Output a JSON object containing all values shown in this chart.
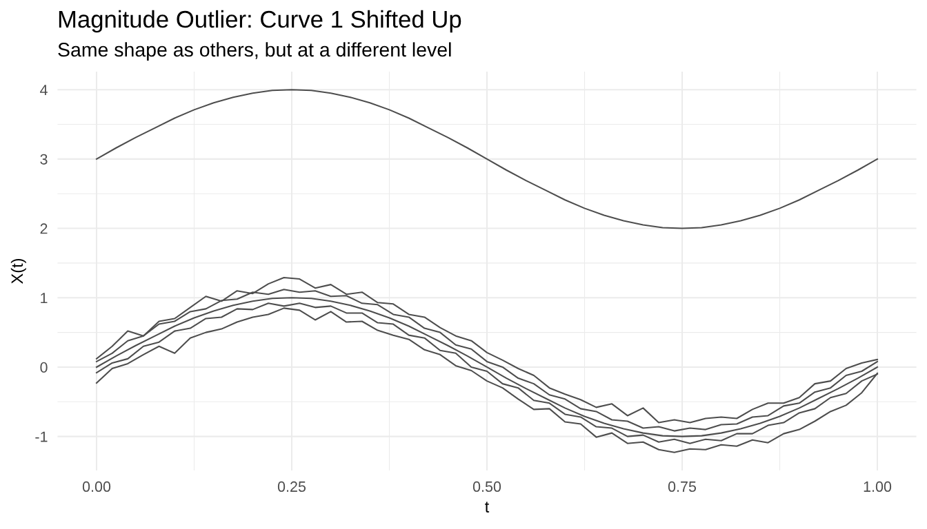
{
  "chart_data": {
    "type": "line",
    "title": "Magnitude Outlier: Curve 1 Shifted Up",
    "subtitle": "Same shape as others, but at a different level",
    "xlabel": "t",
    "ylabel": "X(t)",
    "x": [
      0,
      0.025,
      0.05,
      0.075,
      0.1,
      0.125,
      0.15,
      0.175,
      0.2,
      0.225,
      0.25,
      0.275,
      0.3,
      0.325,
      0.35,
      0.375,
      0.4,
      0.425,
      0.45,
      0.475,
      0.5,
      0.525,
      0.55,
      0.575,
      0.6,
      0.625,
      0.65,
      0.675,
      0.7,
      0.725,
      0.75,
      0.775,
      0.8,
      0.825,
      0.85,
      0.875,
      0.9,
      0.925,
      0.95,
      0.975,
      1.0
    ],
    "series": [
      {
        "color": "#4d4d4d",
        "values": [
          3.0,
          3.16,
          3.31,
          3.45,
          3.59,
          3.71,
          3.81,
          3.89,
          3.95,
          3.99,
          4.0,
          3.99,
          3.95,
          3.89,
          3.81,
          3.71,
          3.59,
          3.45,
          3.31,
          3.16,
          3.0,
          2.84,
          2.69,
          2.55,
          2.41,
          2.29,
          2.19,
          2.11,
          2.05,
          2.01,
          2.0,
          2.01,
          2.05,
          2.11,
          2.19,
          2.29,
          2.41,
          2.55,
          2.69,
          2.84,
          3.0
        ]
      },
      {
        "color": "#4d4d4d",
        "x": [
          0,
          0.02,
          0.04,
          0.06,
          0.08,
          0.1,
          0.12,
          0.14,
          0.16,
          0.18,
          0.2,
          0.22,
          0.24,
          0.26,
          0.28,
          0.3,
          0.32,
          0.34,
          0.36,
          0.38,
          0.4,
          0.42,
          0.44,
          0.46,
          0.48,
          0.5,
          0.52,
          0.54,
          0.56,
          0.58,
          0.6,
          0.62,
          0.64,
          0.66,
          0.68,
          0.7,
          0.72,
          0.74,
          0.76,
          0.78,
          0.8,
          0.82,
          0.84,
          0.86,
          0.88,
          0.9,
          0.92,
          0.94,
          0.96,
          0.98,
          1.0
        ],
        "values": [
          0.12,
          0.3,
          0.52,
          0.45,
          0.66,
          0.7,
          0.86,
          1.02,
          0.95,
          1.1,
          1.06,
          1.2,
          1.29,
          1.27,
          1.14,
          1.19,
          1.05,
          1.08,
          0.93,
          0.91,
          0.76,
          0.72,
          0.57,
          0.45,
          0.38,
          0.21,
          0.1,
          -0.02,
          -0.12,
          -0.3,
          -0.39,
          -0.47,
          -0.58,
          -0.53,
          -0.7,
          -0.59,
          -0.8,
          -0.76,
          -0.8,
          -0.74,
          -0.72,
          -0.74,
          -0.61,
          -0.52,
          -0.52,
          -0.44,
          -0.24,
          -0.2,
          -0.02,
          0.06,
          0.11
        ]
      },
      {
        "color": "#4d4d4d",
        "x": [
          0,
          0.02,
          0.04,
          0.06,
          0.08,
          0.1,
          0.12,
          0.14,
          0.16,
          0.18,
          0.2,
          0.22,
          0.24,
          0.26,
          0.28,
          0.3,
          0.32,
          0.34,
          0.36,
          0.38,
          0.4,
          0.42,
          0.44,
          0.46,
          0.48,
          0.5,
          0.52,
          0.54,
          0.56,
          0.58,
          0.6,
          0.62,
          0.64,
          0.66,
          0.68,
          0.7,
          0.72,
          0.74,
          0.76,
          0.78,
          0.8,
          0.82,
          0.84,
          0.86,
          0.88,
          0.9,
          0.92,
          0.94,
          0.96,
          0.98,
          1.0
        ],
        "values": [
          0.08,
          0.2,
          0.38,
          0.45,
          0.62,
          0.66,
          0.8,
          0.84,
          0.96,
          0.98,
          1.08,
          1.05,
          1.12,
          1.08,
          1.1,
          1.02,
          1.03,
          0.92,
          0.9,
          0.76,
          0.72,
          0.56,
          0.5,
          0.32,
          0.26,
          0.08,
          0.0,
          -0.16,
          -0.24,
          -0.4,
          -0.46,
          -0.6,
          -0.64,
          -0.76,
          -0.78,
          -0.88,
          -0.86,
          -0.92,
          -0.88,
          -0.9,
          -0.83,
          -0.82,
          -0.72,
          -0.7,
          -0.56,
          -0.52,
          -0.36,
          -0.3,
          -0.12,
          -0.06,
          0.08
        ]
      },
      {
        "color": "#4d4d4d",
        "values": [
          0.0,
          0.16,
          0.31,
          0.45,
          0.59,
          0.71,
          0.81,
          0.89,
          0.95,
          0.99,
          1.0,
          0.99,
          0.95,
          0.89,
          0.81,
          0.71,
          0.59,
          0.45,
          0.31,
          0.16,
          0.0,
          -0.16,
          -0.31,
          -0.45,
          -0.59,
          -0.71,
          -0.81,
          -0.89,
          -0.95,
          -0.99,
          -1.0,
          -0.99,
          -0.95,
          -0.89,
          -0.81,
          -0.71,
          -0.59,
          -0.45,
          -0.31,
          -0.16,
          0.0
        ]
      },
      {
        "color": "#4d4d4d",
        "x": [
          0,
          0.02,
          0.04,
          0.06,
          0.08,
          0.1,
          0.12,
          0.14,
          0.16,
          0.18,
          0.2,
          0.22,
          0.24,
          0.26,
          0.28,
          0.3,
          0.32,
          0.34,
          0.36,
          0.38,
          0.4,
          0.42,
          0.44,
          0.46,
          0.48,
          0.5,
          0.52,
          0.54,
          0.56,
          0.58,
          0.6,
          0.62,
          0.64,
          0.66,
          0.68,
          0.7,
          0.72,
          0.74,
          0.76,
          0.78,
          0.8,
          0.82,
          0.84,
          0.86,
          0.88,
          0.9,
          0.92,
          0.94,
          0.96,
          0.98,
          1.0
        ],
        "values": [
          -0.08,
          0.06,
          0.12,
          0.3,
          0.36,
          0.52,
          0.56,
          0.7,
          0.72,
          0.84,
          0.83,
          0.92,
          0.88,
          0.92,
          0.86,
          0.88,
          0.78,
          0.78,
          0.64,
          0.62,
          0.46,
          0.42,
          0.24,
          0.2,
          0.0,
          -0.06,
          -0.24,
          -0.3,
          -0.48,
          -0.52,
          -0.68,
          -0.72,
          -0.86,
          -0.88,
          -1.0,
          -0.98,
          -1.08,
          -1.04,
          -1.1,
          -1.04,
          -1.06,
          -0.96,
          -0.96,
          -0.84,
          -0.8,
          -0.66,
          -0.6,
          -0.44,
          -0.38,
          -0.2,
          -0.1
        ]
      },
      {
        "color": "#4d4d4d",
        "x": [
          0,
          0.02,
          0.04,
          0.06,
          0.08,
          0.1,
          0.12,
          0.14,
          0.16,
          0.18,
          0.2,
          0.22,
          0.24,
          0.26,
          0.28,
          0.3,
          0.32,
          0.34,
          0.36,
          0.38,
          0.4,
          0.42,
          0.44,
          0.46,
          0.48,
          0.5,
          0.52,
          0.54,
          0.56,
          0.58,
          0.6,
          0.62,
          0.64,
          0.66,
          0.68,
          0.7,
          0.72,
          0.74,
          0.76,
          0.78,
          0.8,
          0.82,
          0.84,
          0.86,
          0.88,
          0.9,
          0.92,
          0.94,
          0.96,
          0.98,
          1.0
        ],
        "values": [
          -0.23,
          -0.02,
          0.05,
          0.18,
          0.3,
          0.2,
          0.42,
          0.5,
          0.55,
          0.65,
          0.72,
          0.76,
          0.85,
          0.82,
          0.68,
          0.8,
          0.65,
          0.66,
          0.53,
          0.46,
          0.4,
          0.25,
          0.18,
          0.02,
          -0.05,
          -0.2,
          -0.3,
          -0.46,
          -0.61,
          -0.6,
          -0.79,
          -0.82,
          -1.01,
          -0.95,
          -1.1,
          -1.08,
          -1.19,
          -1.23,
          -1.18,
          -1.19,
          -1.12,
          -1.14,
          -1.05,
          -1.09,
          -0.96,
          -0.9,
          -0.78,
          -0.64,
          -0.55,
          -0.37,
          -0.09
        ]
      }
    ],
    "xlim": [
      -0.05,
      1.05
    ],
    "ylim": [
      -1.49,
      4.26
    ],
    "xticks": [
      {
        "value": 0,
        "label": "0.00"
      },
      {
        "value": 0.125,
        "label": null
      },
      {
        "value": 0.25,
        "label": "0.25"
      },
      {
        "value": 0.375,
        "label": null
      },
      {
        "value": 0.5,
        "label": "0.50"
      },
      {
        "value": 0.625,
        "label": null
      },
      {
        "value": 0.75,
        "label": "0.75"
      },
      {
        "value": 0.875,
        "label": null
      },
      {
        "value": 1,
        "label": "1.00"
      }
    ],
    "yticks": [
      -1,
      {
        "value": -0.5,
        "label": null
      },
      0,
      {
        "value": 0.5,
        "label": null
      },
      1,
      {
        "value": 1.5,
        "label": null
      },
      2,
      {
        "value": 2.5,
        "label": null
      },
      3,
      {
        "value": 3.5,
        "label": null
      },
      4
    ],
    "grid": true,
    "line_style": "solid"
  }
}
